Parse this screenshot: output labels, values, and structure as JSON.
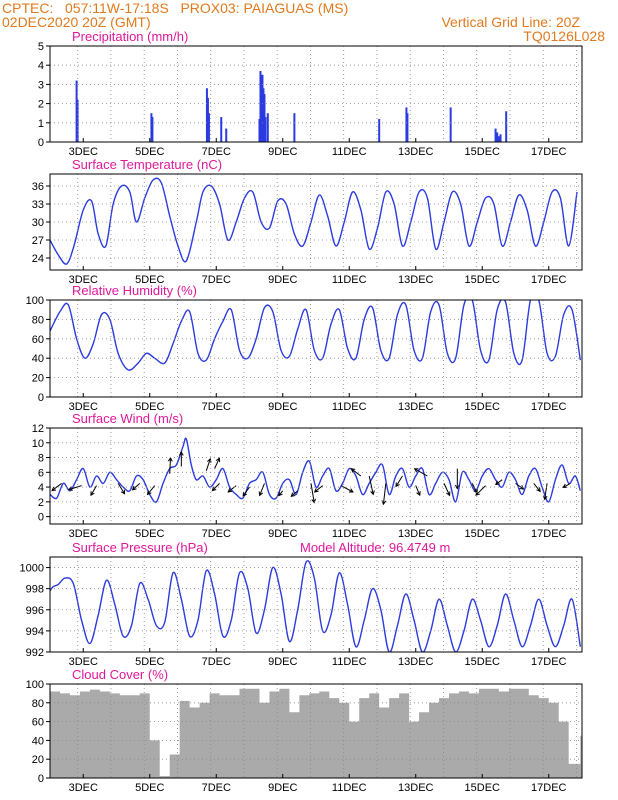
{
  "header": {
    "line1": "CPTEC:   057:11W-17:18S   PROX03: PAIAGUAS (MS)",
    "line2": "02DEC2020 20Z (GMT)",
    "grid_note": "Vertical Grid Line: 20Z",
    "code": "TQ0126L028"
  },
  "colors": {
    "header": "#e07a1e",
    "title": "#e0189a",
    "line": "#2b3be0",
    "cloud": "#aaaaaa",
    "wind_arrow": "#000000",
    "grid": "#888888"
  },
  "x_tick_labels": [
    "3DEC",
    "5DEC",
    "7DEC",
    "9DEC",
    "11DEC",
    "13DEC",
    "15DEC",
    "17DEC"
  ],
  "chart_data": [
    {
      "type": "bar",
      "title": "Precipitation (mm/h)",
      "ylim": [
        0,
        5
      ],
      "yticks": [
        0,
        1,
        2,
        3,
        4,
        5
      ],
      "grid": true,
      "x_unit": "days since 02DEC2020 00Z",
      "x": [
        0.8,
        0.83,
        3.05,
        3.08,
        4.72,
        4.75,
        4.78,
        5.15,
        5.3,
        6.3,
        6.33,
        6.36,
        6.39,
        6.42,
        6.45,
        6.48,
        6.55,
        7.35,
        9.9,
        10.72,
        10.75,
        12.05,
        13.4,
        13.45,
        13.5,
        13.55,
        13.72
      ],
      "values": [
        3.2,
        2.2,
        1.5,
        1.3,
        2.8,
        2.3,
        1.5,
        1.3,
        0.7,
        1.2,
        3.7,
        3.4,
        3.5,
        2.8,
        2.5,
        1.3,
        1.5,
        1.5,
        1.2,
        1.8,
        1.5,
        1.8,
        0.7,
        0.5,
        0.3,
        0.4,
        1.6
      ]
    },
    {
      "type": "line",
      "title": "Surface Temperature (nC)",
      "ylim": [
        22,
        38
      ],
      "yticks": [
        24,
        27,
        30,
        33,
        36
      ],
      "grid": true,
      "x_unit": "days since 02DEC2020 00Z",
      "x": [
        0,
        0.25,
        0.5,
        0.72,
        1.0,
        1.25,
        1.45,
        1.68,
        1.9,
        2.15,
        2.4,
        2.6,
        2.85,
        3.1,
        3.35,
        3.6,
        3.85,
        4.1,
        4.4,
        4.6,
        4.85,
        5.1,
        5.35,
        5.6,
        5.85,
        6.1,
        6.35,
        6.6,
        6.85,
        7.1,
        7.35,
        7.6,
        7.85,
        8.1,
        8.35,
        8.6,
        8.85,
        9.1,
        9.35,
        9.6,
        9.85,
        10.1,
        10.35,
        10.6,
        10.85,
        11.1,
        11.35,
        11.6,
        11.85,
        12.1,
        12.35,
        12.6,
        12.85,
        13.1,
        13.35,
        13.6,
        13.85,
        14.1,
        14.35,
        14.6,
        14.85,
        15.1,
        15.35,
        15.6,
        15.85
      ],
      "values": [
        27.0,
        24.5,
        23.0,
        26.0,
        32.0,
        33.5,
        28.0,
        26.0,
        33.0,
        36.0,
        35.0,
        30.0,
        34.0,
        37.0,
        36.5,
        31.0,
        26.0,
        23.5,
        30.0,
        35.0,
        36.0,
        33.0,
        27.0,
        30.0,
        34.0,
        35.0,
        30.0,
        29.0,
        33.5,
        33.0,
        28.0,
        26.0,
        30.0,
        34.5,
        31.0,
        26.0,
        30.0,
        35.0,
        32.0,
        25.5,
        29.0,
        35.0,
        33.0,
        26.0,
        30.0,
        35.0,
        34.0,
        25.5,
        30.0,
        35.0,
        33.0,
        26.0,
        30.0,
        34.0,
        33.0,
        26.0,
        30.0,
        34.5,
        32.0,
        26.0,
        30.0,
        35.0,
        34.0,
        26.0,
        35.0
      ]
    },
    {
      "type": "line",
      "title": "Relative Humidity (%)",
      "ylim": [
        0,
        100
      ],
      "yticks": [
        0,
        20,
        40,
        60,
        80,
        100
      ],
      "grid": true,
      "x_unit": "days since 02DEC2020 00Z",
      "x": [
        0,
        0.3,
        0.55,
        0.8,
        1.05,
        1.3,
        1.55,
        1.8,
        2.05,
        2.35,
        2.65,
        2.9,
        3.15,
        3.45,
        3.7,
        3.95,
        4.2,
        4.45,
        4.7,
        4.95,
        5.2,
        5.45,
        5.7,
        5.95,
        6.2,
        6.45,
        6.7,
        6.95,
        7.2,
        7.45,
        7.7,
        7.95,
        8.2,
        8.45,
        8.7,
        8.95,
        9.2,
        9.45,
        9.7,
        9.95,
        10.2,
        10.45,
        10.7,
        10.95,
        11.2,
        11.45,
        11.7,
        11.95,
        12.2,
        12.45,
        12.7,
        12.95,
        13.2,
        13.45,
        13.7,
        13.95,
        14.2,
        14.45,
        14.7,
        14.95,
        15.2,
        15.45,
        15.7,
        15.95
      ],
      "values": [
        68,
        88,
        95,
        60,
        40,
        55,
        85,
        80,
        45,
        28,
        35,
        45,
        40,
        35,
        55,
        78,
        88,
        45,
        38,
        60,
        78,
        90,
        48,
        40,
        60,
        92,
        88,
        48,
        42,
        70,
        90,
        48,
        40,
        75,
        90,
        50,
        40,
        80,
        92,
        48,
        40,
        85,
        95,
        48,
        40,
        88,
        95,
        45,
        40,
        95,
        100,
        48,
        38,
        90,
        98,
        45,
        38,
        100,
        100,
        45,
        42,
        85,
        90,
        38
      ]
    },
    {
      "type": "line",
      "title": "Surface Wind (m/s)",
      "ylim": [
        -1,
        12
      ],
      "yticks": [
        0,
        2,
        4,
        6,
        8,
        10,
        12
      ],
      "grid": true,
      "x_unit": "days since 02DEC2020 00Z",
      "x": [
        0,
        0.2,
        0.4,
        0.6,
        0.8,
        1.0,
        1.2,
        1.4,
        1.6,
        1.8,
        2.0,
        2.2,
        2.4,
        2.6,
        2.8,
        3.0,
        3.2,
        3.4,
        3.6,
        3.8,
        4.0,
        4.1,
        4.25,
        4.4,
        4.6,
        4.8,
        5.0,
        5.2,
        5.4,
        5.6,
        5.8,
        6.0,
        6.2,
        6.4,
        6.6,
        6.8,
        7.0,
        7.2,
        7.4,
        7.6,
        7.8,
        8.0,
        8.2,
        8.4,
        8.6,
        8.8,
        9.0,
        9.2,
        9.4,
        9.6,
        9.8,
        10.0,
        10.2,
        10.4,
        10.6,
        10.8,
        11.0,
        11.2,
        11.4,
        11.6,
        11.8,
        12.0,
        12.2,
        12.4,
        12.6,
        12.8,
        13.0,
        13.2,
        13.4,
        13.6,
        13.8,
        14.0,
        14.2,
        14.4,
        14.6,
        14.8,
        15.0,
        15.2,
        15.4,
        15.6,
        15.8,
        15.95
      ],
      "values": [
        3.0,
        2.5,
        4.5,
        3.5,
        5.0,
        6.5,
        4.0,
        5.5,
        4.5,
        6.0,
        5.0,
        4.0,
        3.5,
        5.5,
        5.0,
        3.0,
        2.0,
        4.5,
        6.5,
        7.0,
        9.5,
        10.5,
        7.0,
        5.0,
        5.5,
        4.0,
        5.0,
        6.5,
        4.0,
        3.0,
        2.5,
        4.5,
        5.0,
        6.0,
        3.0,
        2.5,
        4.5,
        5.0,
        3.0,
        6.0,
        7.5,
        4.0,
        5.5,
        6.5,
        3.5,
        4.5,
        6.5,
        5.5,
        3.0,
        4.5,
        6.0,
        7.0,
        3.0,
        5.5,
        6.5,
        4.0,
        5.5,
        6.5,
        3.0,
        4.5,
        6.0,
        5.0,
        2.0,
        6.0,
        5.0,
        3.5,
        5.5,
        6.5,
        5.0,
        4.0,
        6.0,
        5.0,
        3.0,
        5.5,
        6.5,
        4.0,
        2.0,
        5.0,
        7.0,
        4.5,
        5.5,
        3.5
      ],
      "arrows": [
        {
          "x": 0.35,
          "y": 4.5,
          "u": -1.2,
          "v": -0.9
        },
        {
          "x": 0.95,
          "y": 4.2,
          "u": -1.6,
          "v": -0.5
        },
        {
          "x": 1.4,
          "y": 4.2,
          "u": -0.7,
          "v": -1.2
        },
        {
          "x": 2.05,
          "y": 4.5,
          "u": 0.8,
          "v": -1.3
        },
        {
          "x": 2.7,
          "y": 4.5,
          "u": -0.9,
          "v": -0.8
        },
        {
          "x": 3.15,
          "y": 4.2,
          "u": -0.9,
          "v": -1.1
        },
        {
          "x": 3.6,
          "y": 5.8,
          "u": 0.1,
          "v": 2.0
        },
        {
          "x": 3.95,
          "y": 6.8,
          "u": 0.0,
          "v": 1.8
        },
        {
          "x": 4.7,
          "y": 6.2,
          "u": 0.5,
          "v": 1.5
        },
        {
          "x": 4.95,
          "y": 6.5,
          "u": 0.6,
          "v": 1.3
        },
        {
          "x": 5.1,
          "y": 4.5,
          "u": -0.9,
          "v": -0.9
        },
        {
          "x": 5.6,
          "y": 4.2,
          "u": -1.0,
          "v": -0.8
        },
        {
          "x": 6.0,
          "y": 4.0,
          "u": -0.8,
          "v": -1.1
        },
        {
          "x": 6.45,
          "y": 4.5,
          "u": -0.6,
          "v": -1.5
        },
        {
          "x": 7.0,
          "y": 3.5,
          "u": -0.5,
          "v": -0.6
        },
        {
          "x": 7.45,
          "y": 3.5,
          "u": -0.8,
          "v": -0.7
        },
        {
          "x": 7.85,
          "y": 4.5,
          "u": 0.4,
          "v": -2.4
        },
        {
          "x": 8.2,
          "y": 4.2,
          "u": -1.0,
          "v": -0.8
        },
        {
          "x": 8.75,
          "y": 4.2,
          "u": 1.5,
          "v": -0.8
        },
        {
          "x": 9.35,
          "y": 5.5,
          "u": -1.2,
          "v": 0.9
        },
        {
          "x": 9.6,
          "y": 5.5,
          "u": 0.5,
          "v": -2.3
        },
        {
          "x": 10.1,
          "y": 4.5,
          "u": -0.3,
          "v": -2.6
        },
        {
          "x": 10.6,
          "y": 5.5,
          "u": -0.8,
          "v": -1.3
        },
        {
          "x": 11.0,
          "y": 4.2,
          "u": 0.5,
          "v": -1.2
        },
        {
          "x": 11.35,
          "y": 5.5,
          "u": -1.6,
          "v": 0.9
        },
        {
          "x": 11.85,
          "y": 4.5,
          "u": 0.7,
          "v": -1.5
        },
        {
          "x": 12.25,
          "y": 6.5,
          "u": 0.0,
          "v": -2.5
        },
        {
          "x": 12.7,
          "y": 4.5,
          "u": 0.6,
          "v": -1.2
        },
        {
          "x": 13.1,
          "y": 4.2,
          "u": -1.2,
          "v": -1.2
        },
        {
          "x": 13.6,
          "y": 5.0,
          "u": -0.8,
          "v": -0.6
        },
        {
          "x": 14.0,
          "y": 4.5,
          "u": 1.0,
          "v": -0.7
        },
        {
          "x": 14.55,
          "y": 4.5,
          "u": 0.8,
          "v": -1.0
        },
        {
          "x": 14.95,
          "y": 4.5,
          "u": -0.3,
          "v": -2.0
        },
        {
          "x": 15.65,
          "y": 4.5,
          "u": -0.9,
          "v": -0.5
        }
      ]
    },
    {
      "type": "line",
      "title": "Surface Pressure (hPa)",
      "subtitle": "Model Altitude: 96.4749 m",
      "ylim": [
        992,
        1001
      ],
      "yticks": [
        992,
        994,
        996,
        998,
        1000
      ],
      "grid": true,
      "x_unit": "days since 02DEC2020 00Z",
      "x": [
        0,
        0.1,
        0.25,
        0.45,
        0.7,
        0.95,
        1.2,
        1.45,
        1.7,
        1.95,
        2.2,
        2.45,
        2.7,
        2.95,
        3.2,
        3.45,
        3.7,
        3.95,
        4.2,
        4.45,
        4.7,
        4.95,
        5.2,
        5.45,
        5.7,
        5.95,
        6.2,
        6.45,
        6.7,
        6.95,
        7.2,
        7.45,
        7.7,
        7.95,
        8.2,
        8.45,
        8.7,
        8.95,
        9.2,
        9.45,
        9.7,
        9.95,
        10.2,
        10.45,
        10.7,
        10.95,
        11.2,
        11.45,
        11.7,
        11.95,
        12.2,
        12.45,
        12.7,
        12.95,
        13.2,
        13.45,
        13.7,
        13.95,
        14.2,
        14.45,
        14.7,
        14.95,
        15.2,
        15.45,
        15.7,
        15.95
      ],
      "values": [
        997.8,
        998.2,
        998.4,
        999.0,
        998.5,
        995.0,
        992.8,
        995.5,
        998.8,
        996.5,
        993.5,
        994.5,
        998.5,
        997.0,
        994.5,
        994.8,
        999.5,
        997.0,
        993.5,
        995.0,
        999.7,
        997.5,
        993.5,
        995.0,
        999.5,
        998.0,
        993.8,
        996.0,
        1000.0,
        997.5,
        993.0,
        996.0,
        1000.5,
        999.0,
        994.0,
        995.5,
        999.5,
        996.5,
        992.5,
        995.0,
        998.0,
        996.0,
        992.0,
        994.5,
        997.5,
        995.0,
        992.0,
        994.0,
        997.0,
        994.5,
        992.0,
        994.0,
        997.0,
        995.0,
        992.5,
        994.5,
        997.5,
        995.0,
        992.5,
        994.5,
        997.0,
        994.5,
        992.5,
        994.5,
        997.0,
        992.5
      ]
    },
    {
      "type": "area",
      "title": "Cloud Cover (%)",
      "ylim": [
        0,
        100
      ],
      "yticks": [
        0,
        20,
        40,
        60,
        80,
        100
      ],
      "grid": true,
      "x_unit": "days since 02DEC2020 00Z",
      "x": [
        0,
        0.3,
        0.6,
        0.9,
        1.2,
        1.5,
        1.8,
        2.1,
        2.4,
        2.7,
        3.0,
        3.3,
        3.6,
        3.9,
        4.2,
        4.5,
        4.8,
        5.1,
        5.4,
        5.7,
        6.0,
        6.3,
        6.6,
        6.9,
        7.2,
        7.5,
        7.8,
        8.1,
        8.4,
        8.7,
        9.0,
        9.3,
        9.6,
        9.9,
        10.2,
        10.5,
        10.8,
        11.1,
        11.4,
        11.7,
        12.0,
        12.3,
        12.6,
        12.9,
        13.2,
        13.5,
        13.8,
        14.1,
        14.4,
        14.7,
        15.0,
        15.3,
        15.6,
        15.95
      ],
      "values": [
        92,
        90,
        88,
        92,
        94,
        92,
        90,
        88,
        88,
        90,
        40,
        2,
        25,
        82,
        75,
        80,
        90,
        88,
        88,
        95,
        95,
        80,
        92,
        95,
        70,
        88,
        90,
        92,
        85,
        80,
        60,
        85,
        90,
        75,
        85,
        90,
        60,
        70,
        80,
        85,
        90,
        92,
        90,
        95,
        95,
        92,
        95,
        95,
        88,
        85,
        80,
        60,
        15,
        45
      ]
    }
  ]
}
